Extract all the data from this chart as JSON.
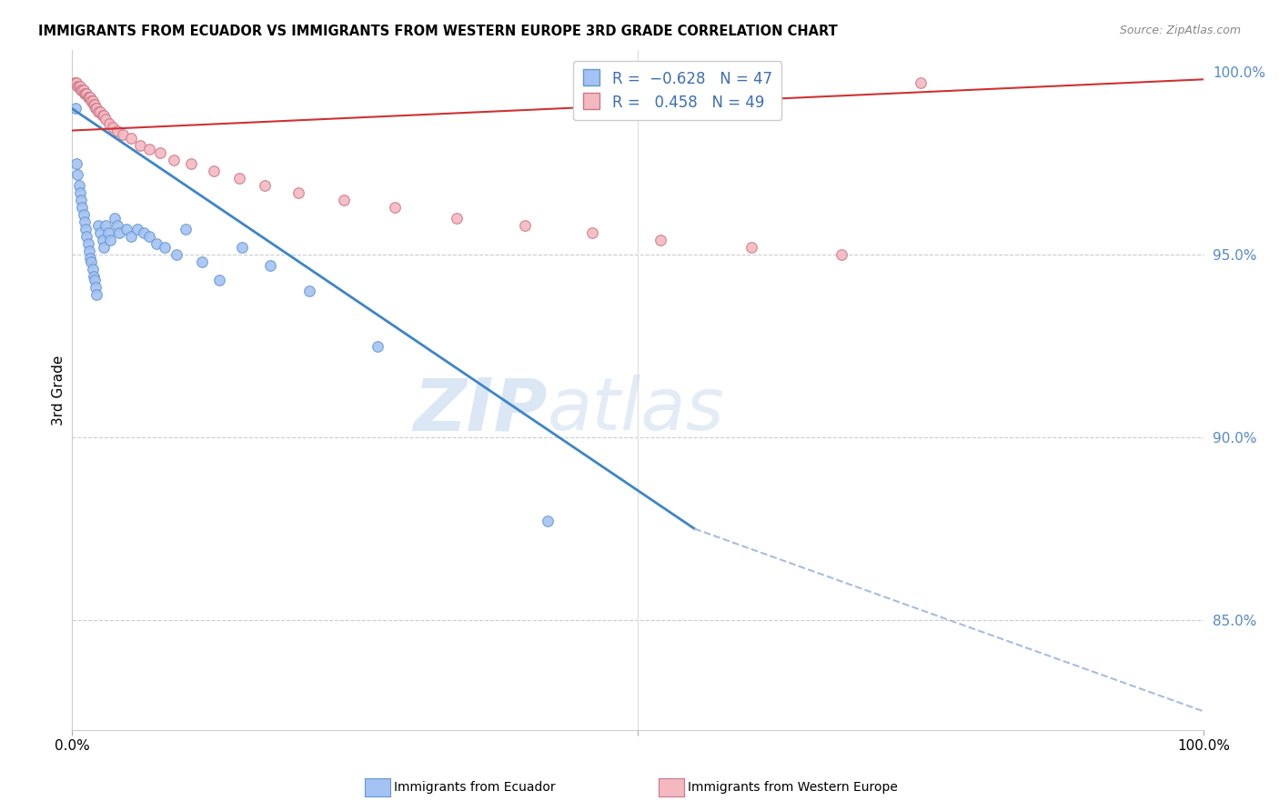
{
  "title": "IMMIGRANTS FROM ECUADOR VS IMMIGRANTS FROM WESTERN EUROPE 3RD GRADE CORRELATION CHART",
  "source": "Source: ZipAtlas.com",
  "ylabel": "3rd Grade",
  "ecuador_color": "#a4c2f4",
  "ecuador_edge_color": "#6699cc",
  "western_europe_color": "#f4b8c1",
  "western_europe_edge_color": "#cc7788",
  "ecuador_line_color": "#3d85c8",
  "western_europe_line_color": "#cc3333",
  "dashed_line_color": "#aabbdd",
  "right_tick_color": "#5588cc",
  "xlim": [
    0.0,
    1.0
  ],
  "ylim": [
    0.82,
    1.006
  ],
  "y_ticks": [
    1.0,
    0.95,
    0.9,
    0.85
  ],
  "y_tick_labels": [
    "100.0%",
    "95.0%",
    "90.0%",
    "85.0%"
  ],
  "marker_size": 70,
  "ecuador_R": -0.628,
  "ecuador_N": 47,
  "western_europe_R": 0.458,
  "western_europe_N": 49
}
